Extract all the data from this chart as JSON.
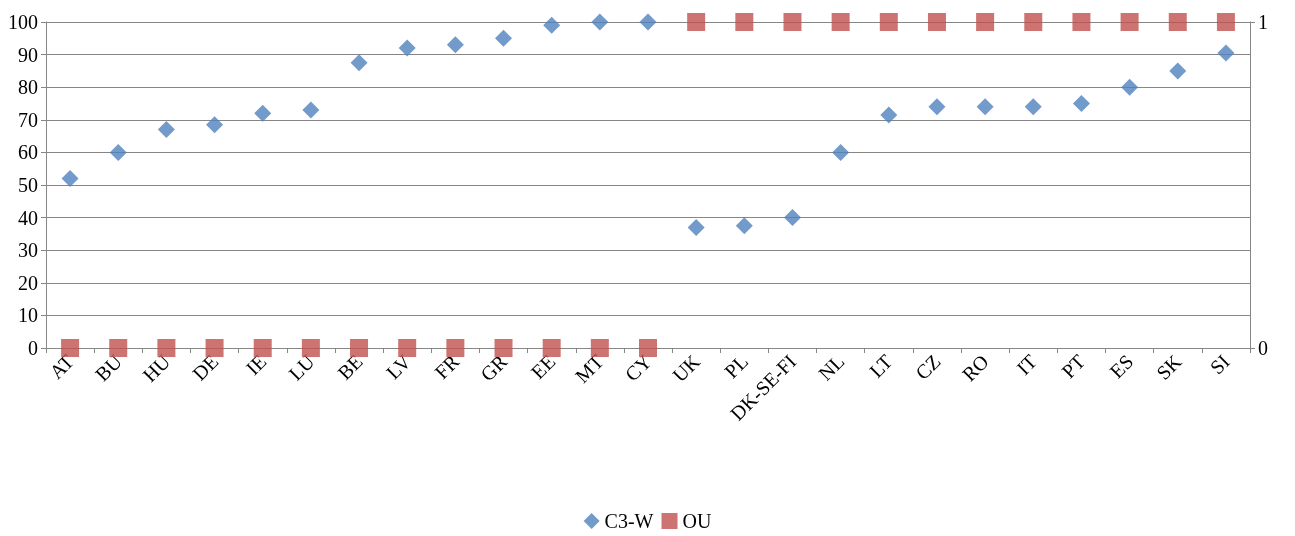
{
  "chart_data": {
    "type": "scatter",
    "categories": [
      "AT",
      "BU",
      "HU",
      "DE",
      "IE",
      "LU",
      "BE",
      "LV",
      "FR",
      "GR",
      "EE",
      "MT",
      "CY",
      "UK",
      "PL",
      "DK-SE-FI",
      "NL",
      "LT",
      "CZ",
      "RO",
      "IT",
      "PT",
      "ES",
      "SK",
      "SI"
    ],
    "series": [
      {
        "name": "C3-W",
        "color": "#4f81bd",
        "marker": "diamond",
        "values": [
          52,
          60,
          67,
          68.5,
          72,
          73,
          87.5,
          92,
          93,
          95,
          99,
          100,
          100,
          37,
          37.5,
          40,
          60,
          71.5,
          74,
          74,
          74,
          75,
          80,
          85,
          90.5
        ]
      },
      {
        "name": "OU",
        "color": "#c0504d",
        "marker": "square",
        "axis": "y2",
        "values": [
          0,
          0,
          0,
          0,
          0,
          0,
          0,
          0,
          0,
          0,
          0,
          0,
          0,
          1,
          1,
          1,
          1,
          1,
          1,
          1,
          1,
          1,
          1,
          1,
          1
        ]
      }
    ],
    "ylim": [
      0,
      100
    ],
    "yticks": [
      0,
      10,
      20,
      30,
      40,
      50,
      60,
      70,
      80,
      90,
      100
    ],
    "y2lim": [
      0,
      1
    ],
    "y2ticks": [
      0,
      1
    ],
    "grid": "y",
    "legend": "bottom"
  }
}
